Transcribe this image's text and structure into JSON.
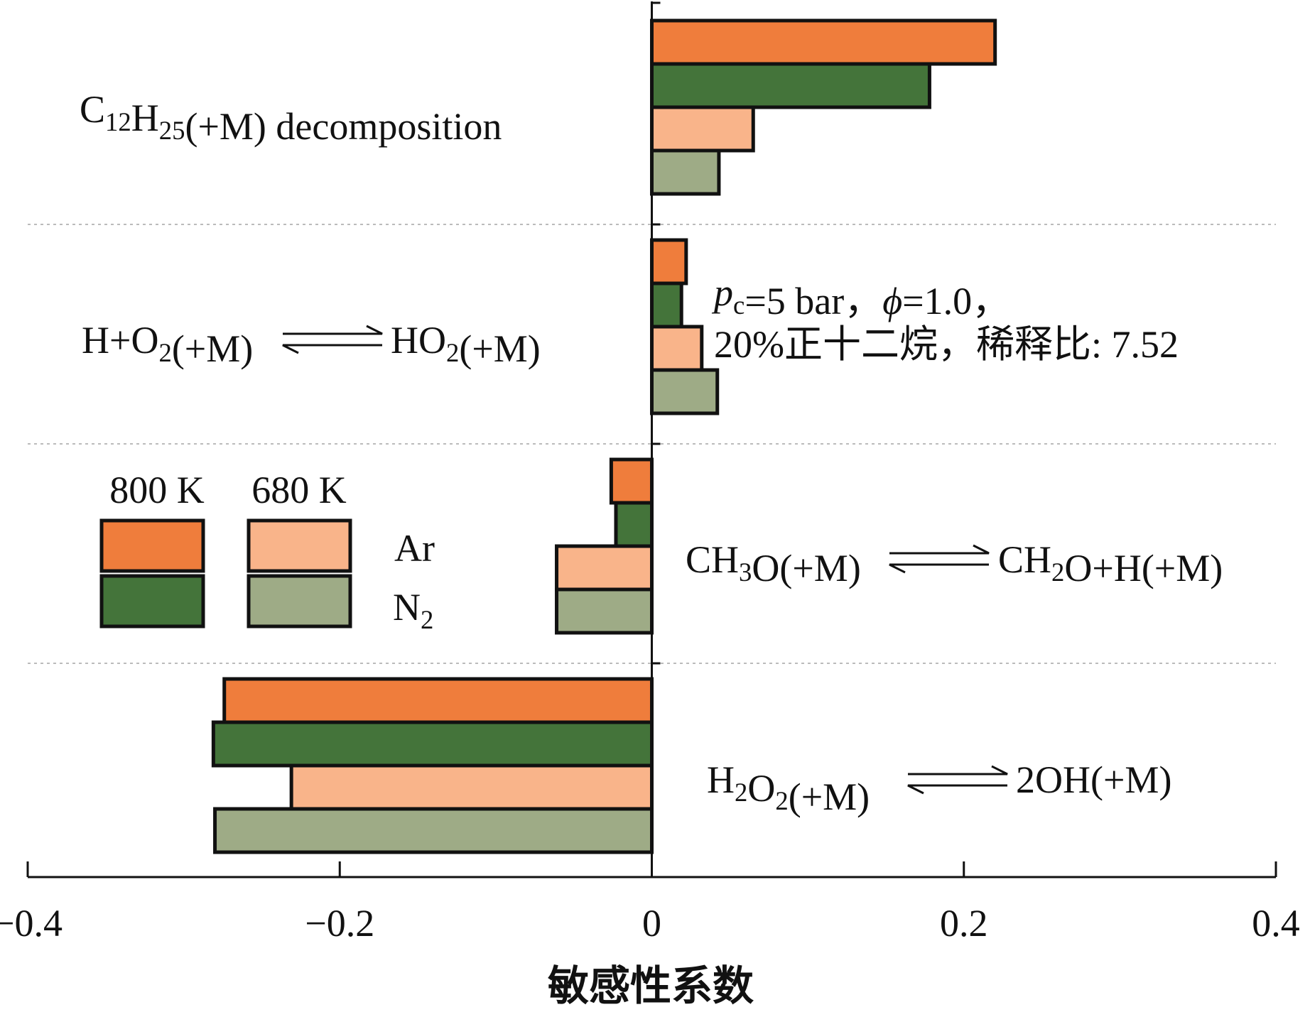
{
  "chart_data": {
    "type": "bar",
    "orientation": "horizontal",
    "categories": [
      "C12H25(+M) decomposition",
      "H+O2(+M) ⇌ HO2(+M)",
      "CH3O(+M) ⇌ CH2O+H(+M)",
      "H2O2(+M) ⇌ 2OH(+M)"
    ],
    "category_labels": [
      {
        "parts": [
          {
            "t": "C"
          },
          {
            "t": "12",
            "sub": true
          },
          {
            "t": "H"
          },
          {
            "t": "25",
            "sub": true
          },
          {
            "t": "(+M) decomposition"
          }
        ]
      },
      {
        "left": [
          {
            "t": "H+O"
          },
          {
            "t": "2",
            "sub": true
          },
          {
            "t": "(+M)"
          }
        ],
        "right": [
          {
            "t": "HO"
          },
          {
            "t": "2",
            "sub": true
          },
          {
            "t": "(+M)"
          }
        ]
      },
      {
        "left": [
          {
            "t": "CH"
          },
          {
            "t": "3",
            "sub": true
          },
          {
            "t": "O(+M)"
          }
        ],
        "right": [
          {
            "t": "CH"
          },
          {
            "t": "2",
            "sub": true
          },
          {
            "t": "O+H(+M)"
          }
        ]
      },
      {
        "left": [
          {
            "t": "H"
          },
          {
            "t": "2",
            "sub": true
          },
          {
            "t": "O"
          },
          {
            "t": "2",
            "sub": true
          },
          {
            "t": "(+M)"
          }
        ],
        "right": [
          {
            "t": "2OH(+M)"
          }
        ]
      }
    ],
    "series": [
      {
        "name": "800 K Ar",
        "color": "#ef7d3c",
        "values": [
          0.22,
          0.022,
          -0.026,
          -0.274
        ]
      },
      {
        "name": "800 K N2",
        "color": "#44743a",
        "values": [
          0.178,
          0.019,
          -0.023,
          -0.281
        ]
      },
      {
        "name": "680 K Ar",
        "color": "#f9b48a",
        "values": [
          0.065,
          0.032,
          -0.061,
          -0.231
        ]
      },
      {
        "name": "680 K N2",
        "color": "#9eab86",
        "values": [
          0.043,
          0.042,
          -0.061,
          -0.28
        ]
      }
    ],
    "xlabel": "敏感性系数",
    "xlim": [
      -0.4,
      0.4
    ],
    "xticks": [
      -0.4,
      -0.2,
      0,
      0.2,
      0.4
    ],
    "xtick_labels": [
      "−0.4",
      "−0.2",
      "0",
      "0.2",
      "0.4"
    ],
    "grid": "dotted separators between categories",
    "legend": {
      "placement": "left-middle",
      "column_headers": [
        "800 K",
        "680 K"
      ],
      "row_labels": [
        "Ar",
        "N2"
      ]
    },
    "annotation": {
      "line1": [
        {
          "t": "p",
          "italic": true
        },
        {
          "t": "c",
          "sub": true
        },
        {
          "t": "=5 bar，"
        },
        {
          "t": "ϕ",
          "italic": true
        },
        {
          "t": "=1.0，"
        }
      ],
      "line2": [
        {
          "t": "20%正十二烷，稀释比: 7.52"
        }
      ]
    }
  }
}
